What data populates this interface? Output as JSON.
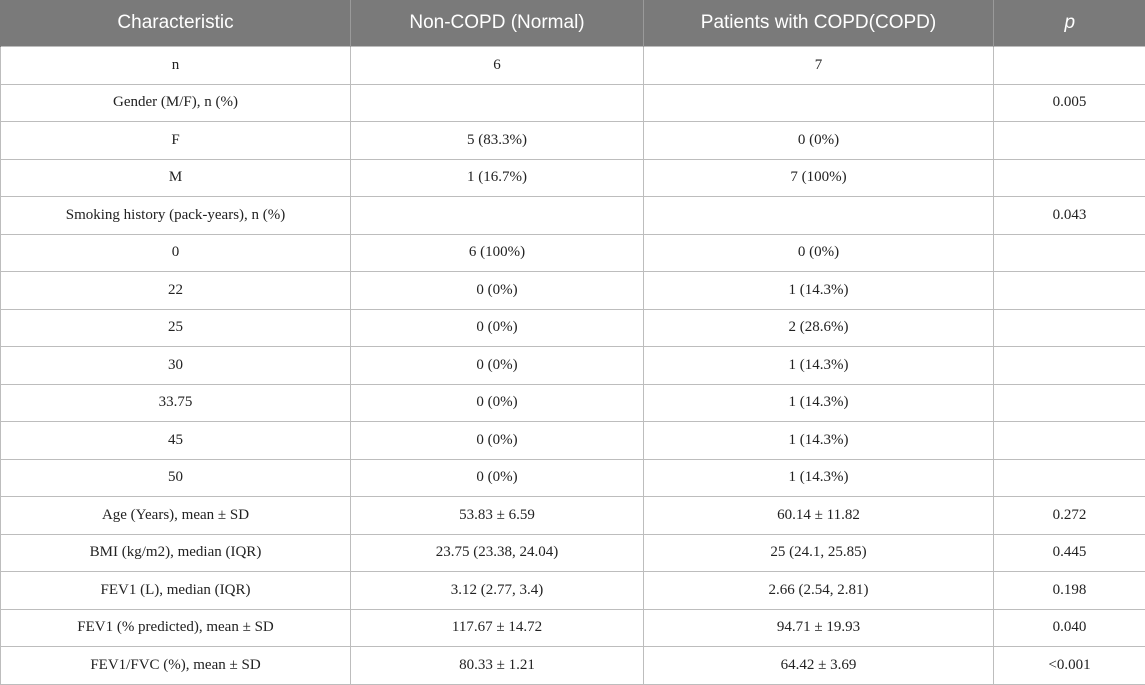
{
  "table": {
    "headers": [
      "Characteristic",
      "Non-COPD (Normal)",
      "Patients with COPD(COPD)",
      "p"
    ],
    "rows": [
      [
        "n",
        "6",
        "7",
        ""
      ],
      [
        "Gender (M/F), n (%)",
        "",
        "",
        "0.005"
      ],
      [
        "F",
        "5 (83.3%)",
        "0 (0%)",
        ""
      ],
      [
        "M",
        "1 (16.7%)",
        "7 (100%)",
        ""
      ],
      [
        "Smoking history (pack-years), n (%)",
        "",
        "",
        "0.043"
      ],
      [
        "0",
        "6 (100%)",
        "0 (0%)",
        ""
      ],
      [
        "22",
        "0 (0%)",
        "1 (14.3%)",
        ""
      ],
      [
        "25",
        "0 (0%)",
        "2 (28.6%)",
        ""
      ],
      [
        "30",
        "0 (0%)",
        "1 (14.3%)",
        ""
      ],
      [
        "33.75",
        "0 (0%)",
        "1 (14.3%)",
        ""
      ],
      [
        "45",
        "0 (0%)",
        "1 (14.3%)",
        ""
      ],
      [
        "50",
        "0 (0%)",
        "1 (14.3%)",
        ""
      ],
      [
        "Age (Years), mean ± SD",
        "53.83 ± 6.59",
        "60.14 ± 11.82",
        "0.272"
      ],
      [
        "BMI (kg/m2), median (IQR)",
        "23.75 (23.38, 24.04)",
        "25 (24.1, 25.85)",
        "0.445"
      ],
      [
        "FEV1 (L), median (IQR)",
        "3.12 (2.77, 3.4)",
        "2.66 (2.54, 2.81)",
        "0.198"
      ],
      [
        "FEV1 (% predicted), mean ± SD",
        "117.67 ± 14.72",
        "94.71 ± 19.93",
        "0.040"
      ],
      [
        "FEV1/FVC (%), mean ± SD",
        "80.33 ± 1.21",
        "64.42 ± 3.69",
        "<0.001"
      ]
    ]
  }
}
